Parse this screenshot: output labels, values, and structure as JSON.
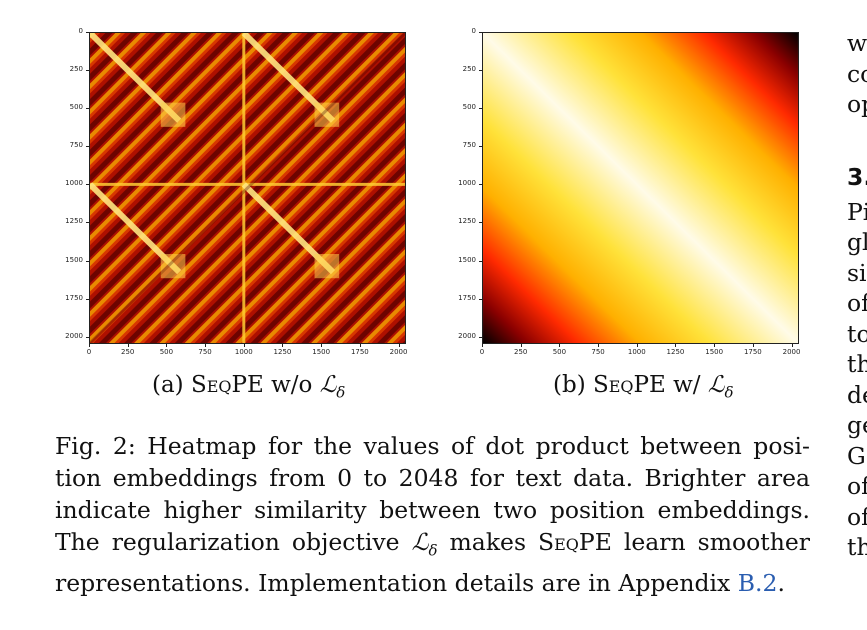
{
  "figure": {
    "panels": [
      {
        "id": "a",
        "caption_prefix": "(a) ",
        "caption_smallcaps": "SeqPE",
        "caption_suffix": " w/o ",
        "caption_symbol": "ℒ",
        "caption_subscript": "δ",
        "colormap": "hot",
        "pattern": "periodic-diagonal"
      },
      {
        "id": "b",
        "caption_prefix": "(b) ",
        "caption_smallcaps": "SeqPE",
        "caption_suffix": " w/ ",
        "caption_symbol": "ℒ",
        "caption_subscript": "δ",
        "colormap": "hot",
        "pattern": "smooth-diagonal"
      }
    ],
    "y_ticks": [
      "0",
      "250",
      "500",
      "750",
      "1000",
      "1250",
      "1500",
      "1750",
      "2000"
    ],
    "x_ticks": [
      "0",
      "250",
      "500",
      "750",
      "1000",
      "1250",
      "1500",
      "1750",
      "2000"
    ]
  },
  "chart_data": [
    {
      "type": "heatmap",
      "title": "",
      "colormap": "hot",
      "x_range": [
        0,
        2048
      ],
      "y_range": [
        0,
        2048
      ],
      "x_ticks": [
        0,
        250,
        500,
        750,
        1000,
        1250,
        1500,
        1750,
        2000
      ],
      "y_ticks": [
        0,
        250,
        500,
        750,
        1000,
        1250,
        1500,
        1750,
        2000
      ]
    },
    {
      "type": "heatmap",
      "title": "",
      "colormap": "hot",
      "x_range": [
        0,
        2048
      ],
      "y_range": [
        0,
        2048
      ],
      "x_ticks": [
        0,
        250,
        500,
        750,
        1000,
        1250,
        1500,
        1750,
        2000
      ],
      "y_ticks": [
        0,
        250,
        500,
        750,
        1000,
        1250,
        1500,
        1750,
        2000
      ]
    }
  ],
  "caption": {
    "lines": [
      "Fig. 2: Heatmap for the values of dot product between posi-",
      "tion embeddings from 0 to 2048 for text data. Brighter area",
      "indicate higher similarity between two position embeddings.",
      "The regularization objective ℒδ makes SeqPE learn smoother",
      "representations. Implementation details are in Appendix B.2."
    ],
    "line4_parts": [
      "The regularization objective ",
      "ℒ",
      "δ",
      " makes ",
      "SeqPE",
      " learn smoother"
    ],
    "line5_parts": [
      "representations. Implementation details are in Appendix ",
      "B.2",
      "."
    ]
  },
  "side_column": {
    "lines": [
      "w",
      "co",
      "op",
      "",
      "3.",
      "Pi",
      "gl",
      "si",
      "of",
      "to",
      "th",
      "de",
      "ge",
      "G",
      "of",
      "of",
      "th"
    ]
  }
}
